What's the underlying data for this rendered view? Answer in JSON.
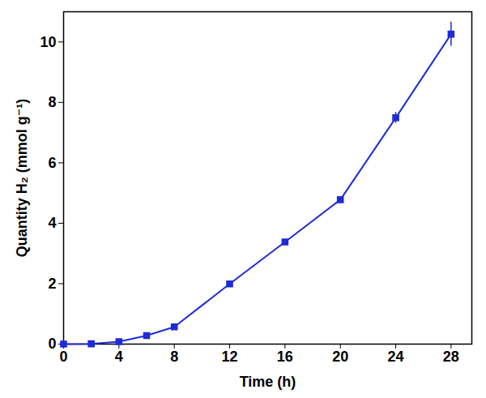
{
  "chart_data": {
    "type": "line",
    "x_label": "Time (h)",
    "y_label": "Quantity H₂ (mmol g⁻¹)",
    "x": [
      0,
      2,
      4,
      6,
      8,
      12,
      16,
      20,
      24,
      28
    ],
    "values": [
      0,
      0.01,
      0.08,
      0.28,
      0.57,
      1.99,
      3.38,
      4.78,
      7.49,
      10.26
    ],
    "errors": [
      0,
      0.01,
      0.02,
      0.03,
      0.04,
      0.08,
      0.1,
      0.06,
      0.18,
      0.4
    ],
    "color": "#1f2bd8",
    "marker": "square",
    "line_style": "solid",
    "xlim": [
      0,
      29.5
    ],
    "xticks": [
      0,
      4,
      8,
      12,
      16,
      20,
      24,
      28
    ],
    "ylim": [
      0,
      11
    ],
    "yticks": [
      0,
      2,
      4,
      6,
      8,
      10
    ],
    "grid": false
  }
}
